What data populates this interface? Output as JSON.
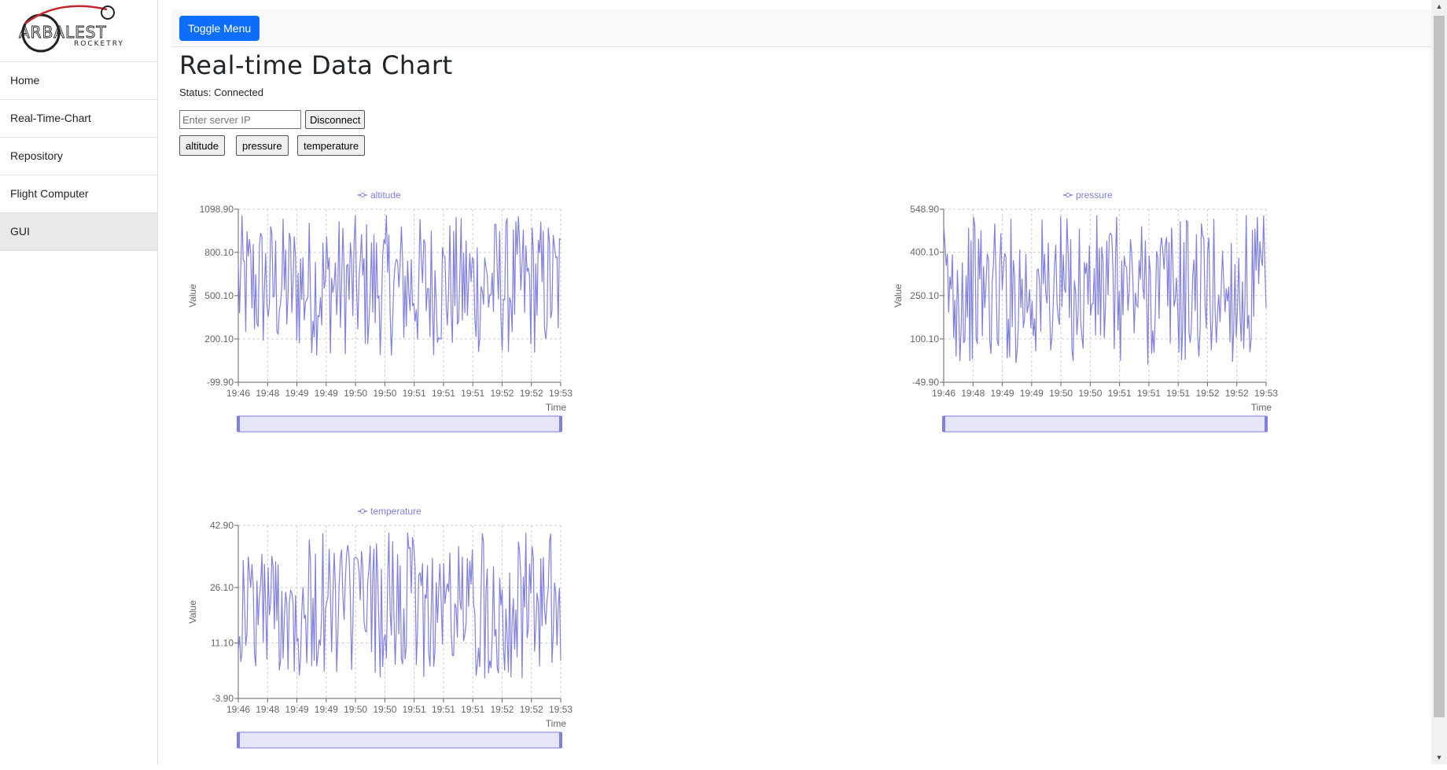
{
  "sidebar": {
    "logo": {
      "line1": "ARBALEST",
      "line2": "ROCKETRY"
    },
    "items": [
      {
        "label": "Home"
      },
      {
        "label": "Real-Time-Chart"
      },
      {
        "label": "Repository"
      },
      {
        "label": "Flight Computer"
      },
      {
        "label": "GUI"
      }
    ]
  },
  "topbar": {
    "toggle_label": "Toggle Menu"
  },
  "main": {
    "title": "Real-time Data Chart",
    "status": "Status: Connected",
    "server_input": {
      "value": "",
      "placeholder": "Enter server IP"
    },
    "disconnect_label": "Disconnect",
    "series_buttons": [
      {
        "label": "altitude"
      },
      {
        "label": "pressure"
      },
      {
        "label": "temperature"
      }
    ]
  },
  "colors": {
    "series": "#8080e0",
    "zoom_fill": "#e6e6f8",
    "accent": "#0d6efd"
  },
  "chart_data": [
    {
      "type": "line",
      "name": "altitude",
      "legend": "altitude",
      "xlabel": "Time",
      "ylabel": "Value",
      "yticks": [
        "1098.90",
        "800.10",
        "500.10",
        "200.10",
        "-99.90"
      ],
      "ylim": [
        -99.9,
        1098.9
      ],
      "xticks": [
        "19:46",
        "19:48",
        "19:49",
        "19:49",
        "19:50",
        "19:50",
        "19:51",
        "19:51",
        "19:51",
        "19:52",
        "19:52",
        "19:53"
      ],
      "value_range": [
        80,
        1060
      ],
      "samples": 260
    },
    {
      "type": "line",
      "name": "pressure",
      "legend": "pressure",
      "xlabel": "Time",
      "ylabel": "Value",
      "yticks": [
        "548.90",
        "400.10",
        "250.10",
        "100.10",
        "-49.90"
      ],
      "ylim": [
        -49.9,
        548.9
      ],
      "xticks": [
        "19:46",
        "19:48",
        "19:49",
        "19:49",
        "19:50",
        "19:50",
        "19:51",
        "19:51",
        "19:51",
        "19:52",
        "19:52",
        "19:53"
      ],
      "value_range": [
        10,
        530
      ],
      "samples": 260
    },
    {
      "type": "line",
      "name": "temperature",
      "legend": "temperature",
      "xlabel": "Time",
      "ylabel": "Value",
      "yticks": [
        "42.90",
        "26.10",
        "11.10",
        "-3.90"
      ],
      "ylim": [
        -3.9,
        42.9
      ],
      "xticks": [
        "19:46",
        "19:48",
        "19:49",
        "19:49",
        "19:50",
        "19:50",
        "19:51",
        "19:51",
        "19:51",
        "19:52",
        "19:52",
        "19:53"
      ],
      "value_range": [
        1,
        41
      ],
      "samples": 260
    }
  ]
}
